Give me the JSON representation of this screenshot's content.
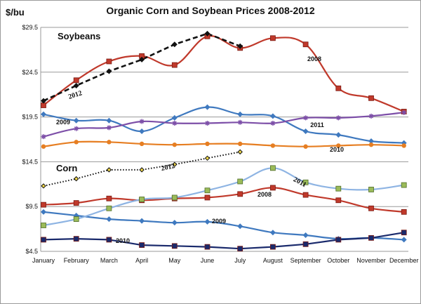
{
  "chart_data": {
    "type": "line",
    "title": "Organic Corn and Soybean Prices 2008-2012",
    "ylabel": "$/bu",
    "xlabel": "",
    "ylim": [
      4.5,
      29.5
    ],
    "yticks": [
      "$4.5",
      "$9.5",
      "$14.5",
      "$19.5",
      "$24.5",
      "$29.5"
    ],
    "ytick_values": [
      4.5,
      9.5,
      14.5,
      19.5,
      24.5,
      29.5
    ],
    "categories": [
      "January",
      "February",
      "March",
      "April",
      "May",
      "June",
      "July",
      "August",
      "September",
      "October",
      "November",
      "December"
    ],
    "grid": true,
    "group_labels": {
      "soybeans": "Soybeans",
      "corn": "Corn"
    },
    "series": [
      {
        "name": "Soybeans 2008",
        "label": "2008",
        "color": "#c0392b",
        "marker": "square",
        "smooth": true,
        "values": [
          20.8,
          23.6,
          25.7,
          26.3,
          25.3,
          28.5,
          27.2,
          28.3,
          27.6,
          22.7,
          21.6,
          20.1
        ]
      },
      {
        "name": "Soybeans 2009",
        "label": "2009",
        "color": "#3f79bf",
        "marker": "diamond",
        "smooth": true,
        "values": [
          19.8,
          19.1,
          19.1,
          17.9,
          19.4,
          20.6,
          19.8,
          19.6,
          17.9,
          17.5,
          16.8,
          16.6
        ]
      },
      {
        "name": "Soybeans 2010",
        "label": "2010",
        "color": "#e67e22",
        "marker": "circle",
        "smooth": true,
        "values": [
          16.2,
          16.7,
          16.7,
          16.5,
          16.4,
          16.5,
          16.5,
          16.3,
          16.2,
          16.3,
          16.4,
          16.3
        ]
      },
      {
        "name": "Soybeans 2011",
        "label": "2011",
        "color": "#7d4fa8",
        "marker": "star",
        "smooth": true,
        "values": [
          17.3,
          18.2,
          18.3,
          19.0,
          18.8,
          18.8,
          18.9,
          18.8,
          19.4,
          19.4,
          19.6,
          20.0
        ]
      },
      {
        "name": "Soybeans 2012",
        "label": "2012",
        "color": "#111111",
        "marker": "diamond",
        "dashed": true,
        "smooth": false,
        "values": [
          21.3,
          23.0,
          24.6,
          25.9,
          27.6,
          28.8,
          27.4,
          null,
          null,
          null,
          null,
          null
        ]
      },
      {
        "name": "Corn 2008",
        "label": "2008",
        "color": "#c0392b",
        "marker": "square",
        "smooth": true,
        "values": [
          9.7,
          9.9,
          10.4,
          10.2,
          10.4,
          10.5,
          10.9,
          11.6,
          10.8,
          10.2,
          9.3,
          8.9
        ]
      },
      {
        "name": "Corn 2009",
        "label": "2009",
        "color": "#3f79bf",
        "marker": "diamond",
        "smooth": true,
        "values": [
          8.9,
          8.5,
          8.1,
          7.9,
          7.7,
          7.8,
          7.3,
          6.6,
          6.3,
          5.9,
          6.0,
          5.8
        ]
      },
      {
        "name": "Corn 2010",
        "label": "2010",
        "color": "#1a2a6c",
        "marker": "square",
        "smooth": false,
        "values": [
          5.8,
          5.9,
          5.8,
          5.2,
          5.1,
          5.0,
          4.8,
          5.0,
          5.3,
          5.8,
          6.0,
          6.6
        ]
      },
      {
        "name": "Corn 2011",
        "label": "2011",
        "color": "#8eb4e3",
        "marker": "square-green",
        "smooth": true,
        "values": [
          7.4,
          8.1,
          9.3,
          10.3,
          10.5,
          11.3,
          12.3,
          13.8,
          12.2,
          11.5,
          11.4,
          11.9
        ]
      },
      {
        "name": "Corn 2012",
        "label": "2012",
        "color": "#111111",
        "marker": "diamond-small",
        "dotted": true,
        "smooth": false,
        "values": [
          11.8,
          12.6,
          13.6,
          13.6,
          14.2,
          14.9,
          15.6,
          null,
          null,
          null,
          null,
          null
        ]
      }
    ]
  }
}
